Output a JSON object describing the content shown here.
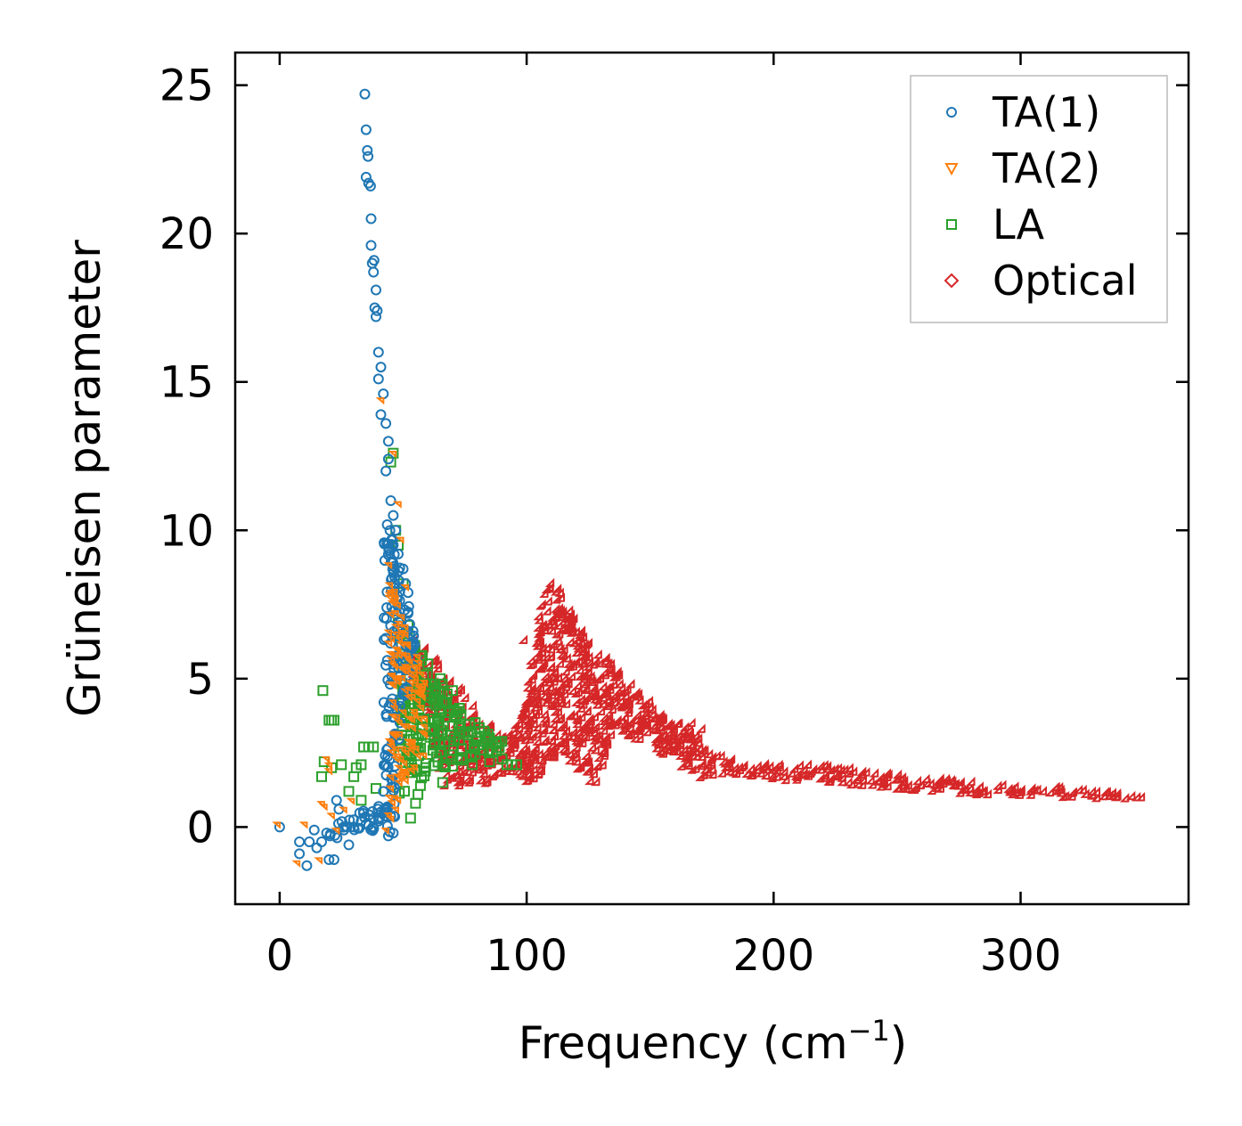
{
  "chart_data": {
    "type": "scatter",
    "title": "",
    "xlabel": "Frequency (cm",
    "xlabel_sup": "−1",
    "xlabel_end": ")",
    "ylabel": "Grüneisen parameter",
    "xlim": [
      -18,
      368
    ],
    "ylim": [
      -2.6,
      26.1
    ],
    "xticks": [
      0,
      100,
      200,
      300
    ],
    "xtick_labels": [
      "0",
      "100",
      "200",
      "300"
    ],
    "yticks": [
      0,
      5,
      10,
      15,
      20,
      25
    ],
    "ytick_labels": [
      "0",
      "5",
      "10",
      "15",
      "20",
      "25"
    ],
    "grid": false,
    "legend_position": "top-right",
    "series": [
      {
        "name": "TA(1)",
        "marker": "circle",
        "color": "#1f77b4",
        "points": [
          [
            0,
            0
          ],
          [
            8,
            -0.5
          ],
          [
            8,
            -0.9
          ],
          [
            11,
            -1.3
          ],
          [
            12,
            -0.5
          ],
          [
            14,
            -0.1
          ],
          [
            15,
            -0.7
          ],
          [
            17,
            -0.5
          ],
          [
            19,
            -0.2
          ],
          [
            20,
            -1.1
          ],
          [
            22,
            -1.1
          ],
          [
            23,
            0.9
          ],
          [
            24,
            0.6
          ],
          [
            26,
            -0.1
          ],
          [
            28,
            -0.6
          ],
          [
            30,
            0
          ],
          [
            33,
            0.2
          ],
          [
            35,
            0.1
          ],
          [
            38,
            0.3
          ],
          [
            40,
            0.2
          ],
          [
            42,
            1.2
          ],
          [
            44,
            -0.3
          ],
          [
            46,
            -0.2
          ],
          [
            34.5,
            24.7
          ],
          [
            35,
            23.5
          ],
          [
            35.5,
            22.8
          ],
          [
            35.8,
            22.6
          ],
          [
            35,
            21.9
          ],
          [
            36,
            21.7
          ],
          [
            36.8,
            21.6
          ],
          [
            37,
            20.5
          ],
          [
            37,
            19.6
          ],
          [
            37.5,
            19
          ],
          [
            38.2,
            19.1
          ],
          [
            38,
            18.7
          ],
          [
            39,
            18.1
          ],
          [
            38.5,
            17.5
          ],
          [
            39,
            17.2
          ],
          [
            39.5,
            17.4
          ],
          [
            40,
            16
          ],
          [
            41,
            15.5
          ],
          [
            40,
            15.1
          ],
          [
            42,
            14.6
          ],
          [
            41,
            13.9
          ],
          [
            43,
            13.6
          ],
          [
            44,
            13
          ],
          [
            44,
            12.4
          ],
          [
            43,
            12
          ],
          [
            45,
            11
          ],
          [
            46,
            10.5
          ],
          [
            47,
            10
          ],
          [
            46,
            9.5
          ],
          [
            48,
            9.2
          ],
          [
            50,
            8.7
          ],
          [
            51,
            8.2
          ],
          [
            52,
            7.9
          ],
          [
            52,
            7.2
          ],
          [
            54,
            6.6
          ],
          [
            53,
            6
          ],
          [
            55,
            5.4
          ]
        ],
        "bands": [
          {
            "x": [
              42,
              44,
              46,
              48,
              50,
              52,
              54,
              56
            ],
            "lower": [
              0.2,
              0.6,
              1.5,
              2.8,
              4.0,
              4.8,
              5.0,
              5.2
            ],
            "upper": [
              9.5,
              10.5,
              10,
              9.2,
              8.5,
              7.6,
              6.8,
              6.0
            ]
          },
          {
            "x": [
              20,
              25,
              30,
              35,
              40,
              44,
              47
            ],
            "lower": [
              -0.5,
              -0.4,
              -0.3,
              -0.2,
              -0.3,
              -0.4,
              -0.2
            ],
            "upper": [
              0,
              0.2,
              0.4,
              0.6,
              0.8,
              1.2,
              1.8
            ]
          }
        ]
      },
      {
        "name": "TA(2)",
        "marker": "triangle",
        "color": "#ff7f0e",
        "points": [
          [
            0,
            0
          ],
          [
            8,
            -1.3
          ],
          [
            11,
            0
          ],
          [
            17,
            -1.2
          ],
          [
            18,
            0.7
          ],
          [
            19,
            0.6
          ],
          [
            20,
            2.2
          ],
          [
            21,
            1.8
          ],
          [
            21,
            2.0
          ],
          [
            22,
            0.3
          ],
          [
            24,
            -0.2
          ],
          [
            27,
            0.5
          ],
          [
            30,
            0.8
          ],
          [
            42,
            14.3
          ],
          [
            47,
            12.5
          ],
          [
            49,
            10.8
          ],
          [
            50,
            9.6
          ],
          [
            52,
            8
          ],
          [
            48,
            0.5
          ],
          [
            46,
            0.2
          ],
          [
            44,
            -0.2
          ]
        ],
        "bands": [
          {
            "x": [
              45,
              48,
              51,
              54,
              57,
              60
            ],
            "lower": [
              0.2,
              0.5,
              1.0,
              1.5,
              2.0,
              2.4
            ],
            "upper": [
              9,
              8,
              7,
              6.2,
              5.6,
              5.0
            ]
          }
        ]
      },
      {
        "name": "LA",
        "marker": "square",
        "color": "#2ca02c",
        "points": [
          [
            17.5,
            4.6
          ],
          [
            20,
            3.6
          ],
          [
            21,
            3.6
          ],
          [
            22,
            3.6
          ],
          [
            18,
            2.2
          ],
          [
            17,
            1.7
          ],
          [
            21,
            2.0
          ],
          [
            25,
            2.1
          ],
          [
            28,
            1.2
          ],
          [
            30,
            1.7
          ],
          [
            31,
            2.0
          ],
          [
            33,
            2.1
          ],
          [
            34,
            2.7
          ],
          [
            36,
            2.7
          ],
          [
            38,
            2.7
          ],
          [
            39,
            1.3
          ],
          [
            33,
            0.9
          ],
          [
            45,
            12.3
          ],
          [
            46,
            12.6
          ],
          [
            47,
            10
          ],
          [
            48,
            9.5
          ],
          [
            50,
            8.2
          ],
          [
            52,
            6.8
          ],
          [
            53,
            0.3
          ],
          [
            55,
            0.8
          ],
          [
            56,
            1.1
          ],
          [
            57,
            1.4
          ],
          [
            60,
            5.5
          ],
          [
            65,
            5.0
          ],
          [
            70,
            4.6
          ],
          [
            72,
            3.9
          ],
          [
            75,
            3.2
          ],
          [
            80,
            3.0
          ],
          [
            85,
            3.0
          ],
          [
            88,
            2.8
          ],
          [
            90,
            2.3
          ],
          [
            92,
            2.1
          ],
          [
            94,
            2.1
          ],
          [
            96,
            2.1
          ],
          [
            85,
            2.2
          ],
          [
            78,
            2.1
          ],
          [
            72,
            2.3
          ],
          [
            66,
            1.5
          ]
        ],
        "bands": [
          {
            "x": [
              48,
              52,
              56,
              60,
              65,
              70,
              75,
              80,
              85,
              90
            ],
            "lower": [
              1.0,
              1.3,
              1.5,
              1.6,
              1.8,
              2.0,
              2.2,
              2.3,
              2.5,
              2.5
            ],
            "upper": [
              7,
              6.5,
              6,
              5.6,
              5,
              4.4,
              3.8,
              3.5,
              3.3,
              3.1
            ]
          }
        ]
      },
      {
        "name": "Optical",
        "marker": "diamond",
        "color": "#d62728",
        "points": [
          [
            100,
            6.2
          ],
          [
            103,
            5.5
          ],
          [
            104,
            5.0
          ],
          [
            102,
            4.8
          ],
          [
            110,
            7.5
          ],
          [
            168,
            3.4
          ],
          [
            172,
            3.2
          ],
          [
            350,
            0.9
          ],
          [
            68,
            1.3
          ],
          [
            74,
            1.3
          ],
          [
            78,
            1.4
          ]
        ],
        "bands": [
          {
            "x": [
              55,
              60,
              65,
              70,
              75,
              80,
              85,
              90,
              95,
              100,
              105,
              108,
              110,
              115,
              120,
              125,
              130,
              135,
              140,
              150,
              160,
              170,
              175,
              180,
              190,
              200,
              220,
              240,
              260,
              280,
              300,
              320,
              340,
              350
            ],
            "lower": [
              5,
              4,
              2,
              1.4,
              1.3,
              1.3,
              1.3,
              1.4,
              1.4,
              1.4,
              1.5,
              1.8,
              2,
              2.5,
              2,
              1.5,
              1.3,
              3,
              3,
              2.6,
              2.2,
              1.5,
              1.6,
              1.7,
              1.6,
              1.5,
              1.4,
              1.25,
              1.1,
              1.0,
              0.95,
              0.9,
              0.85,
              0.85
            ],
            "upper": [
              6.5,
              6,
              5.5,
              5,
              4.5,
              4,
              3.5,
              3,
              3.2,
              4,
              6.5,
              8,
              8.3,
              7.8,
              7,
              6.3,
              5.8,
              5.5,
              5,
              4.2,
              3.6,
              3,
              2.4,
              2.3,
              2.1,
              2.0,
              2.0,
              1.8,
              1.6,
              1.45,
              1.3,
              1.25,
              1.05,
              0.9
            ]
          }
        ]
      }
    ]
  }
}
